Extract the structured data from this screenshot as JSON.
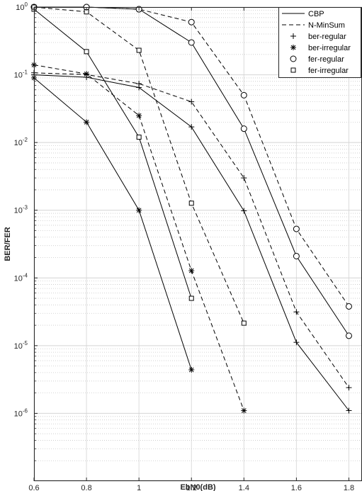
{
  "chart_data": {
    "type": "line",
    "xlabel": "EbN0(dB)",
    "ylabel": "BER/FER",
    "y_scale": "log",
    "xlim": [
      0.6,
      1.85
    ],
    "ylim": [
      1e-07,
      1.0
    ],
    "x_ticks": [
      0.6,
      0.8,
      1.0,
      1.2,
      1.4,
      1.6,
      1.8
    ],
    "x_tick_labels": [
      "0.6",
      "0.8",
      "1",
      "1.2",
      "1.4",
      "1.6",
      "1.8"
    ],
    "y_tick_exponents": [
      0,
      -1,
      -2,
      -3,
      -4,
      -5,
      -6
    ],
    "y_tick_base": "10",
    "grid": true,
    "minor_grid": true,
    "legend_position": "top-right",
    "legend": [
      {
        "label": "CBP",
        "line": "solid",
        "marker": "none"
      },
      {
        "label": "N-MinSum",
        "line": "dashed",
        "marker": "none"
      },
      {
        "label": "ber-regular",
        "line": "none",
        "marker": "plus"
      },
      {
        "label": "ber-irregular",
        "line": "none",
        "marker": "asterisk"
      },
      {
        "label": "fer-regular",
        "line": "none",
        "marker": "circle"
      },
      {
        "label": "fer-irregular",
        "line": "none",
        "marker": "square"
      }
    ],
    "series": [
      {
        "decoder": "CBP",
        "metric": "ber-regular",
        "line": "solid",
        "marker": "plus",
        "x": [
          0.6,
          0.8,
          1.0,
          1.2,
          1.4,
          1.6,
          1.8
        ],
        "y": [
          0.1,
          0.092,
          0.065,
          0.017,
          0.00098,
          1.12e-05,
          1.1e-06
        ]
      },
      {
        "decoder": "N-MinSum",
        "metric": "ber-regular",
        "line": "dashed",
        "marker": "plus",
        "x": [
          0.6,
          0.8,
          1.0,
          1.2,
          1.4,
          1.6,
          1.8
        ],
        "y": [
          0.107,
          0.101,
          0.074,
          0.04,
          0.003,
          3.15e-05,
          2.4e-06
        ]
      },
      {
        "decoder": "CBP",
        "metric": "ber-irregular",
        "line": "solid",
        "marker": "asterisk",
        "x": [
          0.6,
          0.8,
          1.0,
          1.2
        ],
        "y": [
          0.09,
          0.02,
          0.001,
          4.4e-06
        ]
      },
      {
        "decoder": "N-MinSum",
        "metric": "ber-irregular",
        "line": "dashed",
        "marker": "asterisk",
        "x": [
          0.6,
          0.8,
          1.0,
          1.2,
          1.4
        ],
        "y": [
          0.14,
          0.103,
          0.025,
          0.000128,
          1.1e-06
        ]
      },
      {
        "decoder": "CBP",
        "metric": "fer-regular",
        "line": "solid",
        "marker": "circle",
        "x": [
          0.6,
          0.8,
          1.0,
          1.2,
          1.4,
          1.6,
          1.8
        ],
        "y": [
          1.0,
          1.0,
          0.93,
          0.3,
          0.016,
          0.00021,
          1.4e-05
        ]
      },
      {
        "decoder": "N-MinSum",
        "metric": "fer-regular",
        "line": "dashed",
        "marker": "circle",
        "x": [
          0.6,
          0.8,
          1.0,
          1.2,
          1.4,
          1.6,
          1.8
        ],
        "y": [
          1.0,
          1.0,
          0.93,
          0.6,
          0.05,
          0.00053,
          3.8e-05
        ]
      },
      {
        "decoder": "CBP",
        "metric": "fer-irregular",
        "line": "solid",
        "marker": "square",
        "x": [
          0.6,
          0.8,
          1.0,
          1.2
        ],
        "y": [
          0.93,
          0.22,
          0.012,
          5e-05
        ]
      },
      {
        "decoder": "N-MinSum",
        "metric": "fer-irregular",
        "line": "dashed",
        "marker": "square",
        "x": [
          0.6,
          0.8,
          1.0,
          1.2,
          1.4
        ],
        "y": [
          1.0,
          0.85,
          0.23,
          0.00127,
          2.15e-05
        ]
      }
    ]
  }
}
